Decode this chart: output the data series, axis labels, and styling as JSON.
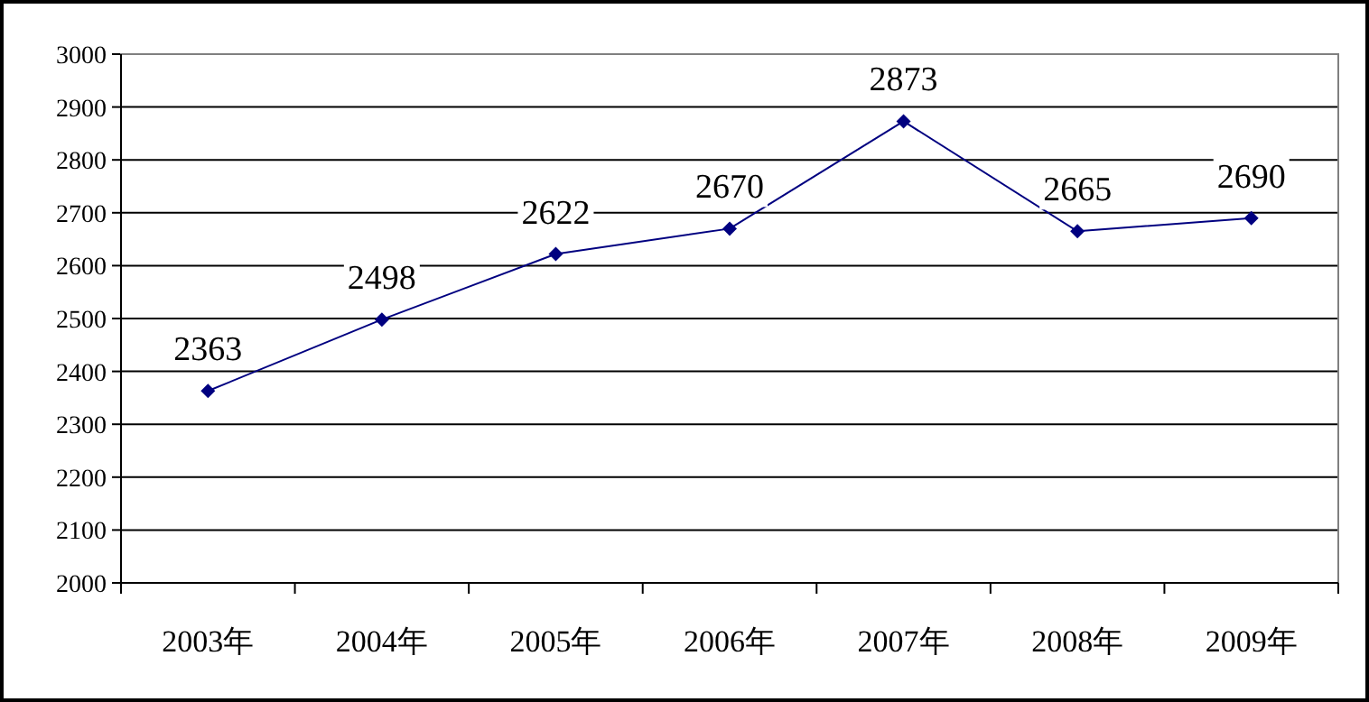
{
  "chart_data": {
    "type": "line",
    "categories": [
      "2003年",
      "2004年",
      "2005年",
      "2006年",
      "2007年",
      "2008年",
      "2009年"
    ],
    "values": [
      2363,
      2498,
      2622,
      2670,
      2873,
      2665,
      2690
    ],
    "color": "#000080",
    "ylim": [
      2000,
      3000
    ],
    "yticks": [
      2000,
      2100,
      2200,
      2300,
      2400,
      2500,
      2600,
      2700,
      2800,
      2900,
      3000
    ],
    "grid": "y",
    "marker": "diamond",
    "data_labels": true
  }
}
